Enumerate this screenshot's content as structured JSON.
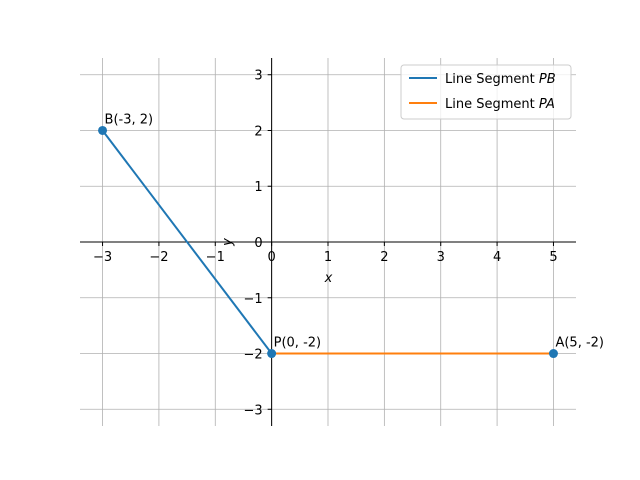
{
  "chart_data": {
    "type": "line",
    "xlabel": "x",
    "ylabel": "y",
    "xlim": [
      -3.4,
      5.4
    ],
    "ylim": [
      -3.3,
      3.3
    ],
    "xticks": [
      -3,
      -2,
      -1,
      0,
      1,
      2,
      3,
      4,
      5
    ],
    "yticks": [
      -3,
      -2,
      -1,
      0,
      1,
      2,
      3
    ],
    "xtick_labels": [
      "−3",
      "−2",
      "−1",
      "0",
      "1",
      "2",
      "3",
      "4",
      "5"
    ],
    "ytick_labels": [
      "−3",
      "−2",
      "−1",
      "0",
      "1",
      "2",
      "3"
    ],
    "grid": true,
    "legend_position": "top-right",
    "series": [
      {
        "name": "Line Segment PB",
        "name_prefix": "Line Segment ",
        "name_italic": "PB",
        "color": "#1f77b4",
        "x": [
          -3,
          0
        ],
        "y": [
          2,
          -2
        ]
      },
      {
        "name": "Line Segment PA",
        "name_prefix": "Line Segment ",
        "name_italic": "PA",
        "color": "#ff7f0e",
        "x": [
          0,
          5
        ],
        "y": [
          -2,
          -2
        ]
      }
    ],
    "points": [
      {
        "label": "B(-3, 2)",
        "x": -3,
        "y": 2
      },
      {
        "label": "P(0, -2)",
        "x": 0,
        "y": -2
      },
      {
        "label": "A(5, -2)",
        "x": 5,
        "y": -2
      }
    ],
    "point_color": "#1f77b4"
  }
}
